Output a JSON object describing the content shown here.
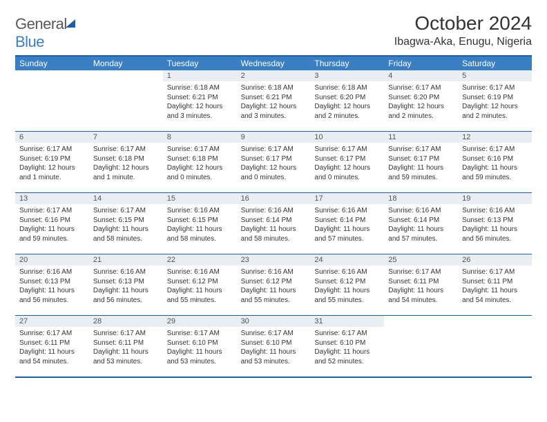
{
  "brand": {
    "name_part1": "General",
    "name_part2": "Blue"
  },
  "title": "October 2024",
  "location": "Ibagwa-Aka, Enugu, Nigeria",
  "colors": {
    "header_bar": "#3a7fc4",
    "accent_border": "#1a5fa4",
    "daynum_bg": "#e9eef2",
    "text": "#333333",
    "logo_gray": "#585858"
  },
  "weekdays": [
    "Sunday",
    "Monday",
    "Tuesday",
    "Wednesday",
    "Thursday",
    "Friday",
    "Saturday"
  ],
  "weeks": [
    [
      {
        "empty": true
      },
      {
        "empty": true
      },
      {
        "num": "1",
        "sunrise": "Sunrise: 6:18 AM",
        "sunset": "Sunset: 6:21 PM",
        "daylight": "Daylight: 12 hours and 3 minutes."
      },
      {
        "num": "2",
        "sunrise": "Sunrise: 6:18 AM",
        "sunset": "Sunset: 6:21 PM",
        "daylight": "Daylight: 12 hours and 3 minutes."
      },
      {
        "num": "3",
        "sunrise": "Sunrise: 6:18 AM",
        "sunset": "Sunset: 6:20 PM",
        "daylight": "Daylight: 12 hours and 2 minutes."
      },
      {
        "num": "4",
        "sunrise": "Sunrise: 6:17 AM",
        "sunset": "Sunset: 6:20 PM",
        "daylight": "Daylight: 12 hours and 2 minutes."
      },
      {
        "num": "5",
        "sunrise": "Sunrise: 6:17 AM",
        "sunset": "Sunset: 6:19 PM",
        "daylight": "Daylight: 12 hours and 2 minutes."
      }
    ],
    [
      {
        "num": "6",
        "sunrise": "Sunrise: 6:17 AM",
        "sunset": "Sunset: 6:19 PM",
        "daylight": "Daylight: 12 hours and 1 minute."
      },
      {
        "num": "7",
        "sunrise": "Sunrise: 6:17 AM",
        "sunset": "Sunset: 6:18 PM",
        "daylight": "Daylight: 12 hours and 1 minute."
      },
      {
        "num": "8",
        "sunrise": "Sunrise: 6:17 AM",
        "sunset": "Sunset: 6:18 PM",
        "daylight": "Daylight: 12 hours and 0 minutes."
      },
      {
        "num": "9",
        "sunrise": "Sunrise: 6:17 AM",
        "sunset": "Sunset: 6:17 PM",
        "daylight": "Daylight: 12 hours and 0 minutes."
      },
      {
        "num": "10",
        "sunrise": "Sunrise: 6:17 AM",
        "sunset": "Sunset: 6:17 PM",
        "daylight": "Daylight: 12 hours and 0 minutes."
      },
      {
        "num": "11",
        "sunrise": "Sunrise: 6:17 AM",
        "sunset": "Sunset: 6:17 PM",
        "daylight": "Daylight: 11 hours and 59 minutes."
      },
      {
        "num": "12",
        "sunrise": "Sunrise: 6:17 AM",
        "sunset": "Sunset: 6:16 PM",
        "daylight": "Daylight: 11 hours and 59 minutes."
      }
    ],
    [
      {
        "num": "13",
        "sunrise": "Sunrise: 6:17 AM",
        "sunset": "Sunset: 6:16 PM",
        "daylight": "Daylight: 11 hours and 59 minutes."
      },
      {
        "num": "14",
        "sunrise": "Sunrise: 6:17 AM",
        "sunset": "Sunset: 6:15 PM",
        "daylight": "Daylight: 11 hours and 58 minutes."
      },
      {
        "num": "15",
        "sunrise": "Sunrise: 6:16 AM",
        "sunset": "Sunset: 6:15 PM",
        "daylight": "Daylight: 11 hours and 58 minutes."
      },
      {
        "num": "16",
        "sunrise": "Sunrise: 6:16 AM",
        "sunset": "Sunset: 6:14 PM",
        "daylight": "Daylight: 11 hours and 58 minutes."
      },
      {
        "num": "17",
        "sunrise": "Sunrise: 6:16 AM",
        "sunset": "Sunset: 6:14 PM",
        "daylight": "Daylight: 11 hours and 57 minutes."
      },
      {
        "num": "18",
        "sunrise": "Sunrise: 6:16 AM",
        "sunset": "Sunset: 6:14 PM",
        "daylight": "Daylight: 11 hours and 57 minutes."
      },
      {
        "num": "19",
        "sunrise": "Sunrise: 6:16 AM",
        "sunset": "Sunset: 6:13 PM",
        "daylight": "Daylight: 11 hours and 56 minutes."
      }
    ],
    [
      {
        "num": "20",
        "sunrise": "Sunrise: 6:16 AM",
        "sunset": "Sunset: 6:13 PM",
        "daylight": "Daylight: 11 hours and 56 minutes."
      },
      {
        "num": "21",
        "sunrise": "Sunrise: 6:16 AM",
        "sunset": "Sunset: 6:13 PM",
        "daylight": "Daylight: 11 hours and 56 minutes."
      },
      {
        "num": "22",
        "sunrise": "Sunrise: 6:16 AM",
        "sunset": "Sunset: 6:12 PM",
        "daylight": "Daylight: 11 hours and 55 minutes."
      },
      {
        "num": "23",
        "sunrise": "Sunrise: 6:16 AM",
        "sunset": "Sunset: 6:12 PM",
        "daylight": "Daylight: 11 hours and 55 minutes."
      },
      {
        "num": "24",
        "sunrise": "Sunrise: 6:16 AM",
        "sunset": "Sunset: 6:12 PM",
        "daylight": "Daylight: 11 hours and 55 minutes."
      },
      {
        "num": "25",
        "sunrise": "Sunrise: 6:17 AM",
        "sunset": "Sunset: 6:11 PM",
        "daylight": "Daylight: 11 hours and 54 minutes."
      },
      {
        "num": "26",
        "sunrise": "Sunrise: 6:17 AM",
        "sunset": "Sunset: 6:11 PM",
        "daylight": "Daylight: 11 hours and 54 minutes."
      }
    ],
    [
      {
        "num": "27",
        "sunrise": "Sunrise: 6:17 AM",
        "sunset": "Sunset: 6:11 PM",
        "daylight": "Daylight: 11 hours and 54 minutes."
      },
      {
        "num": "28",
        "sunrise": "Sunrise: 6:17 AM",
        "sunset": "Sunset: 6:11 PM",
        "daylight": "Daylight: 11 hours and 53 minutes."
      },
      {
        "num": "29",
        "sunrise": "Sunrise: 6:17 AM",
        "sunset": "Sunset: 6:10 PM",
        "daylight": "Daylight: 11 hours and 53 minutes."
      },
      {
        "num": "30",
        "sunrise": "Sunrise: 6:17 AM",
        "sunset": "Sunset: 6:10 PM",
        "daylight": "Daylight: 11 hours and 53 minutes."
      },
      {
        "num": "31",
        "sunrise": "Sunrise: 6:17 AM",
        "sunset": "Sunset: 6:10 PM",
        "daylight": "Daylight: 11 hours and 52 minutes."
      },
      {
        "empty": true
      },
      {
        "empty": true
      }
    ]
  ]
}
